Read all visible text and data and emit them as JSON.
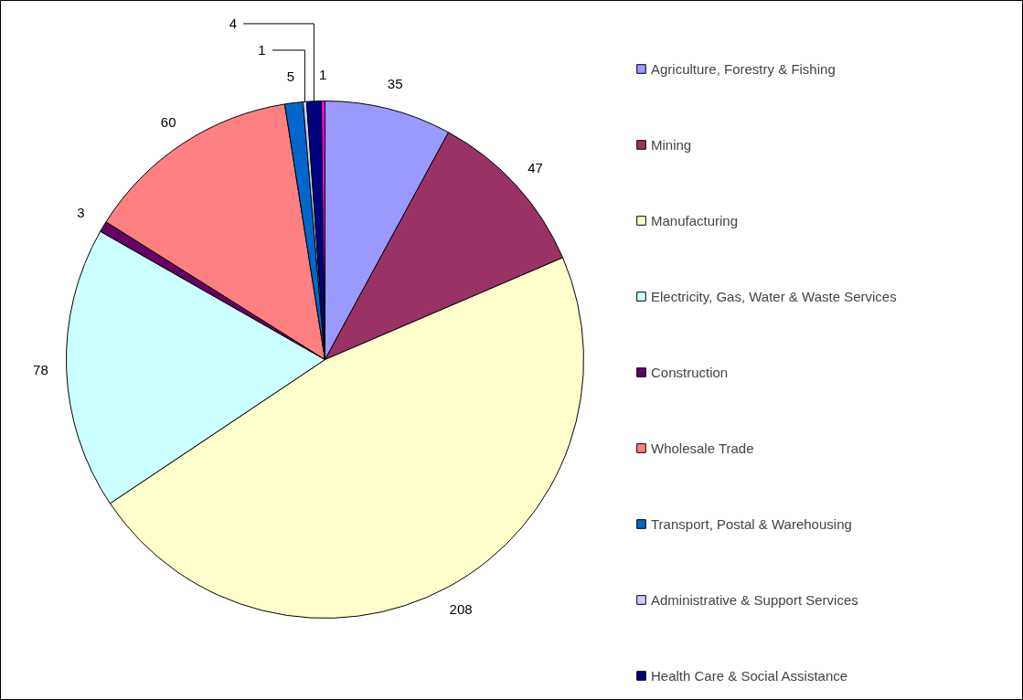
{
  "chart_data": {
    "type": "pie",
    "categories": [
      "Agriculture, Forestry & Fishing",
      "Mining",
      "Manufacturing",
      "Electricity, Gas, Water & Waste Services",
      "Construction",
      "Wholesale Trade",
      "Transport, Postal & Warehousing",
      "Administrative & Support Services",
      "Health Care & Social Assistance",
      null
    ],
    "values": [
      35,
      47,
      208,
      78,
      3,
      60,
      5,
      1,
      4,
      1
    ],
    "colors": [
      "#9999ff",
      "#993366",
      "#ffffcc",
      "#ccffff",
      "#660066",
      "#ff8080",
      "#0066cc",
      "#ccccff",
      "#000080",
      "#ff00ff"
    ],
    "data_labels": true,
    "legend": "right"
  }
}
